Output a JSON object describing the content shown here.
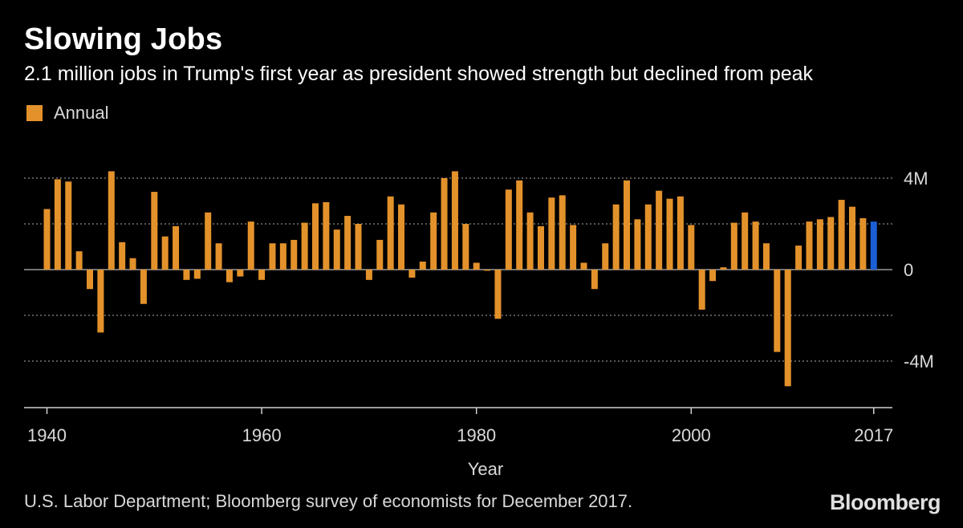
{
  "title": "Slowing Jobs",
  "subtitle": "2.1 million jobs in Trump's first year as president showed strength but declined from peak",
  "legend": {
    "label": "Annual"
  },
  "source": "U.S. Labor Department; Bloomberg survey of economists for December 2017.",
  "brand": "Bloomberg",
  "colors": {
    "background": "#000000",
    "bar": "#e3922b",
    "highlight": "#1a5fd6",
    "grid": "#8a8a8a",
    "text": "#d9d9d9"
  },
  "chart_data": {
    "type": "bar",
    "title": "Slowing Jobs",
    "subtitle": "2.1 million jobs in Trump's first year as president showed strength but declined from peak",
    "xlabel": "Year",
    "ylabel": "",
    "unit": "million jobs",
    "ylim": [
      -6,
      6
    ],
    "grid": true,
    "legend": "top-left",
    "y_ticks": [
      4,
      2,
      0,
      -2,
      -4
    ],
    "y_tick_labels": [
      "4M",
      "",
      "0",
      "",
      "-4M"
    ],
    "x_ticks": [
      1940,
      1960,
      1980,
      2000,
      2017
    ],
    "x_tick_labels": [
      "1940",
      "1960",
      "1980",
      "2000",
      "2017"
    ],
    "highlight_year": 2017,
    "categories": [
      1940,
      1941,
      1942,
      1943,
      1944,
      1945,
      1946,
      1947,
      1948,
      1949,
      1950,
      1951,
      1952,
      1953,
      1954,
      1955,
      1956,
      1957,
      1958,
      1959,
      1960,
      1961,
      1962,
      1963,
      1964,
      1965,
      1966,
      1967,
      1968,
      1969,
      1970,
      1971,
      1972,
      1973,
      1974,
      1975,
      1976,
      1977,
      1978,
      1979,
      1980,
      1981,
      1982,
      1983,
      1984,
      1985,
      1986,
      1987,
      1988,
      1989,
      1990,
      1991,
      1992,
      1993,
      1994,
      1995,
      1996,
      1997,
      1998,
      1999,
      2000,
      2001,
      2002,
      2003,
      2004,
      2005,
      2006,
      2007,
      2008,
      2009,
      2010,
      2011,
      2012,
      2013,
      2014,
      2015,
      2016,
      2017
    ],
    "series": [
      {
        "name": "Annual",
        "values": [
          2.65,
          3.95,
          3.85,
          0.8,
          -0.85,
          -2.75,
          4.3,
          1.2,
          0.5,
          -1.5,
          3.4,
          1.45,
          1.9,
          -0.45,
          -0.4,
          2.5,
          1.15,
          -0.55,
          -0.3,
          2.1,
          -0.45,
          1.15,
          1.15,
          1.3,
          2.05,
          2.9,
          2.95,
          1.75,
          2.35,
          2.0,
          -0.45,
          1.3,
          3.2,
          2.85,
          -0.35,
          0.35,
          2.5,
          4.0,
          4.3,
          2.0,
          0.3,
          -0.05,
          -2.15,
          3.5,
          3.9,
          2.5,
          1.9,
          3.15,
          3.25,
          1.95,
          0.3,
          -0.85,
          1.15,
          2.85,
          3.9,
          2.2,
          2.85,
          3.45,
          3.1,
          3.2,
          1.95,
          -1.75,
          -0.5,
          0.1,
          2.05,
          2.5,
          2.1,
          1.15,
          -3.6,
          -5.1,
          1.05,
          2.1,
          2.2,
          2.3,
          3.05,
          2.75,
          2.25,
          2.1
        ]
      }
    ]
  }
}
